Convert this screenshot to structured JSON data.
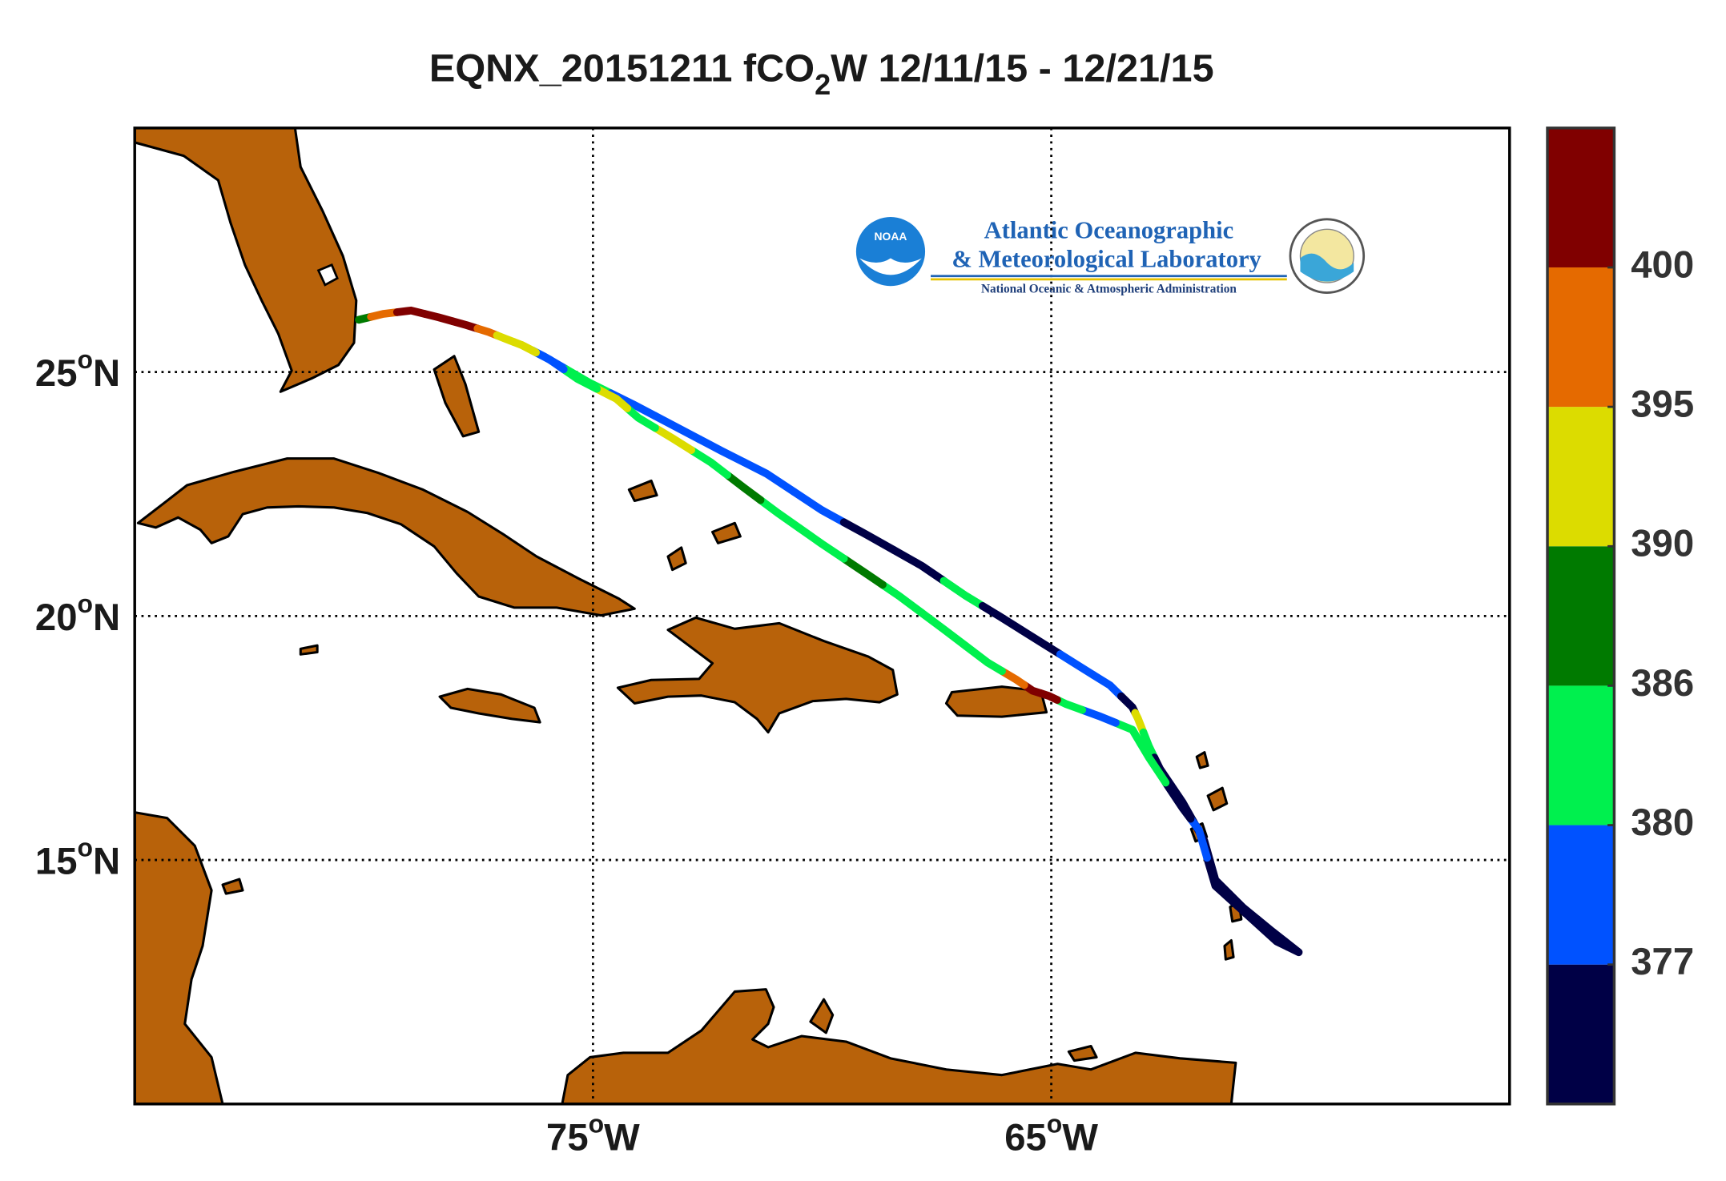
{
  "chart_data": {
    "type": "track_map",
    "title": {
      "main": "EQNX_20151211 fCO",
      "subscript": "2",
      "rest": "W 12/11/15 - 12/21/15"
    },
    "degree_symbol": "o",
    "x_hemisphere": "W",
    "y_hemisphere": "N",
    "xlim": [
      85,
      55
    ],
    "xticks": [
      75,
      65
    ],
    "ylim": [
      10,
      30
    ],
    "yticks": [
      15,
      20,
      25
    ],
    "grid": true,
    "lon": [
      80.11,
      79.58,
      78.97,
      78.37,
      77.76,
      77.28,
      76.91,
      76.55,
      76.07,
      75.1,
      74.13,
      73.16,
      72.19,
      71.22,
      70.01,
      69.04,
      67.83,
      66.86,
      66.14,
      65.17,
      64.44,
      63.72,
      63.23,
      63.11,
      62.87,
      62.63,
      62.14,
      61.66,
      61.42,
      60.81,
      60.21,
      59.6,
      60.08,
      61.42,
      61.78,
      62.14,
      62.87,
      63.23,
      63.96,
      64.69,
      65.05,
      65.41,
      65.77,
      66.38,
      67.35,
      68.32,
      69.04,
      70.01,
      70.98,
      71.71,
      72.43,
      73.28,
      74.01,
      74.49,
      75.34,
      75.94,
      76.55
    ],
    "lat": [
      26.07,
      26.19,
      26.26,
      26.12,
      25.96,
      25.82,
      25.68,
      25.55,
      25.32,
      24.79,
      24.34,
      23.86,
      23.38,
      22.92,
      22.17,
      21.67,
      21.03,
      20.41,
      20.0,
      19.43,
      19.0,
      18.58,
      18.13,
      17.9,
      17.33,
      16.87,
      16.19,
      15.39,
      14.59,
      14.02,
      13.56,
      13.11,
      13.33,
      14.47,
      15.62,
      16.07,
      17.1,
      17.67,
      17.95,
      18.2,
      18.36,
      18.47,
      18.7,
      19.04,
      19.73,
      20.41,
      20.87,
      21.48,
      22.12,
      22.63,
      23.15,
      23.65,
      24.06,
      24.45,
      24.86,
      25.25,
      25.55
    ],
    "values": [
      386,
      398,
      402,
      402,
      402,
      398,
      392,
      392,
      378,
      383,
      379,
      378,
      379,
      378,
      378,
      374,
      374,
      383,
      374,
      374,
      378,
      378,
      374,
      392,
      383,
      374,
      374,
      374,
      374,
      374,
      374,
      374,
      374,
      374,
      378,
      374,
      383,
      383,
      378,
      383,
      402,
      402,
      398,
      383,
      383,
      383,
      388,
      383,
      383,
      388,
      383,
      392,
      383,
      392,
      383,
      378,
      392
    ],
    "colorbar": {
      "ticks": [
        377,
        380,
        386,
        390,
        395,
        400
      ],
      "colors": [
        "#000046",
        "#0052ff",
        "#00f04e",
        "#007a00",
        "#dcdc00",
        "#e56a00",
        "#800000"
      ]
    }
  },
  "logo": {
    "badge": "NOAA",
    "line1": "Atlantic Oceanographic",
    "line2": "& Meteorological Laboratory",
    "line3": "National Oceanic & Atmospheric Administration"
  }
}
